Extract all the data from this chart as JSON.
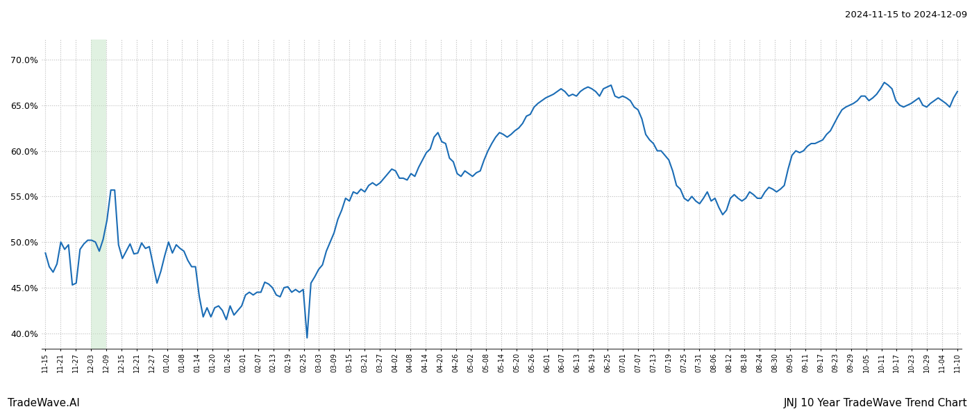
{
  "title_top_right": "2024-11-15 to 2024-12-09",
  "bottom_left_text": "TradeWave.AI",
  "bottom_right_text": "JNJ 10 Year TradeWave Trend Chart",
  "line_color": "#1a6cb5",
  "line_width": 1.5,
  "background_color": "#ffffff",
  "grid_color": "#bbbbbb",
  "shaded_region_color": "#c8e6c9",
  "shaded_region_alpha": 0.55,
  "ylim": [
    0.383,
    0.722
  ],
  "yticks": [
    0.4,
    0.45,
    0.5,
    0.55,
    0.6,
    0.65,
    0.7
  ],
  "x_tick_labels": [
    "11-15",
    "11-21",
    "11-27",
    "12-03",
    "12-09",
    "12-15",
    "12-21",
    "12-27",
    "01-02",
    "01-08",
    "01-14",
    "01-20",
    "01-26",
    "02-01",
    "02-07",
    "02-13",
    "02-19",
    "02-25",
    "03-03",
    "03-09",
    "03-15",
    "03-21",
    "03-27",
    "04-02",
    "04-08",
    "04-14",
    "04-20",
    "04-26",
    "05-02",
    "05-08",
    "05-14",
    "05-20",
    "05-26",
    "06-01",
    "06-07",
    "06-13",
    "06-19",
    "06-25",
    "07-01",
    "07-07",
    "07-13",
    "07-19",
    "07-25",
    "07-31",
    "08-06",
    "08-12",
    "08-18",
    "08-24",
    "08-30",
    "09-05",
    "09-11",
    "09-17",
    "09-23",
    "09-29",
    "10-05",
    "10-11",
    "10-17",
    "10-23",
    "10-29",
    "11-04",
    "11-10"
  ],
  "y_values": [
    0.488,
    0.473,
    0.467,
    0.476,
    0.5,
    0.492,
    0.497,
    0.453,
    0.455,
    0.492,
    0.498,
    0.502,
    0.502,
    0.5,
    0.49,
    0.503,
    0.524,
    0.557,
    0.557,
    0.497,
    0.482,
    0.49,
    0.498,
    0.487,
    0.488,
    0.499,
    0.493,
    0.495,
    0.475,
    0.455,
    0.468,
    0.485,
    0.5,
    0.488,
    0.497,
    0.493,
    0.49,
    0.48,
    0.473,
    0.473,
    0.44,
    0.418,
    0.428,
    0.418,
    0.428,
    0.43,
    0.425,
    0.415,
    0.43,
    0.42,
    0.425,
    0.43,
    0.442,
    0.445,
    0.442,
    0.445,
    0.445,
    0.456,
    0.454,
    0.45,
    0.442,
    0.44,
    0.45,
    0.451,
    0.445,
    0.448,
    0.445,
    0.448,
    0.395,
    0.455,
    0.462,
    0.47,
    0.475,
    0.49,
    0.5,
    0.51,
    0.525,
    0.535,
    0.548,
    0.545,
    0.555,
    0.553,
    0.558,
    0.555,
    0.562,
    0.565,
    0.562,
    0.565,
    0.57,
    0.575,
    0.58,
    0.578,
    0.57,
    0.57,
    0.568,
    0.575,
    0.572,
    0.582,
    0.59,
    0.598,
    0.602,
    0.615,
    0.62,
    0.61,
    0.608,
    0.592,
    0.588,
    0.575,
    0.572,
    0.578,
    0.575,
    0.572,
    0.576,
    0.578,
    0.59,
    0.6,
    0.608,
    0.615,
    0.62,
    0.618,
    0.615,
    0.618,
    0.622,
    0.625,
    0.63,
    0.638,
    0.64,
    0.648,
    0.652,
    0.655,
    0.658,
    0.66,
    0.662,
    0.665,
    0.668,
    0.665,
    0.66,
    0.662,
    0.66,
    0.665,
    0.668,
    0.67,
    0.668,
    0.665,
    0.66,
    0.668,
    0.67,
    0.672,
    0.66,
    0.658,
    0.66,
    0.658,
    0.655,
    0.648,
    0.645,
    0.635,
    0.618,
    0.612,
    0.608,
    0.6,
    0.6,
    0.595,
    0.59,
    0.578,
    0.562,
    0.558,
    0.548,
    0.545,
    0.55,
    0.545,
    0.542,
    0.548,
    0.555,
    0.545,
    0.548,
    0.538,
    0.53,
    0.535,
    0.548,
    0.552,
    0.548,
    0.545,
    0.548,
    0.555,
    0.552,
    0.548,
    0.548,
    0.555,
    0.56,
    0.558,
    0.555,
    0.558,
    0.562,
    0.58,
    0.595,
    0.6,
    0.598,
    0.6,
    0.605,
    0.608,
    0.608,
    0.61,
    0.612,
    0.618,
    0.622,
    0.63,
    0.638,
    0.645,
    0.648,
    0.65,
    0.652,
    0.655,
    0.66,
    0.66,
    0.655,
    0.658,
    0.662,
    0.668,
    0.675,
    0.672,
    0.668,
    0.655,
    0.65,
    0.648,
    0.65,
    0.652,
    0.655,
    0.658,
    0.65,
    0.648,
    0.652,
    0.655,
    0.658,
    0.655,
    0.652,
    0.648,
    0.658,
    0.665
  ],
  "shaded_start_label": "12-03",
  "shaded_end_label": "12-09"
}
